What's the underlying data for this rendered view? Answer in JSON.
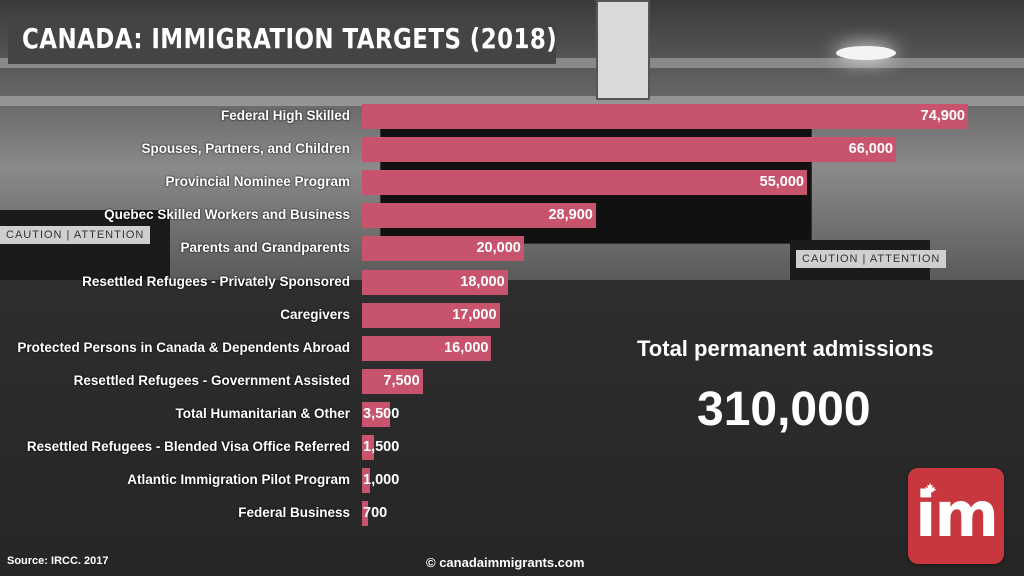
{
  "title": "CANADA: IMMIGRATION TARGETS (2018)",
  "chart_data": {
    "type": "bar",
    "orientation": "horizontal",
    "title": "CANADA: IMMIGRATION TARGETS (2018)",
    "categories": [
      "Federal High Skilled",
      "Spouses, Partners, and Children",
      "Provincial Nominee Program",
      "Quebec Skilled Workers and Business",
      "Parents and Grandparents",
      "Resettled Refugees - Privately Sponsored",
      "Caregivers",
      "Protected Persons in Canada & Dependents Abroad",
      "Resettled Refugees - Government Assisted",
      "Total Humanitarian & Other",
      "Resettled Refugees - Blended Visa Office Referred",
      "Atlantic Immigration Pilot Program",
      "Federal Business"
    ],
    "values": [
      74900,
      66000,
      55000,
      28900,
      20000,
      18000,
      17000,
      16000,
      7500,
      3500,
      1500,
      1000,
      700
    ],
    "value_labels": [
      "74,900",
      "66,000",
      "55,000",
      "28,900",
      "20,000",
      "18,000",
      "17,000",
      "16,000",
      "7,500",
      "3,500",
      "1,500",
      "1,000",
      "700"
    ],
    "bar_color": "#c8536d",
    "xlim": [
      0,
      74900
    ],
    "grid": false,
    "legend": "none"
  },
  "total": {
    "label": "Total permanent admissions",
    "value": "310,000"
  },
  "logo": {
    "text": "im",
    "color": "#c8373e",
    "icon": "maple-leaf-icon"
  },
  "footer": {
    "source": "Source: IRCC. 2017",
    "website": "© canadaimmigrants.com"
  }
}
